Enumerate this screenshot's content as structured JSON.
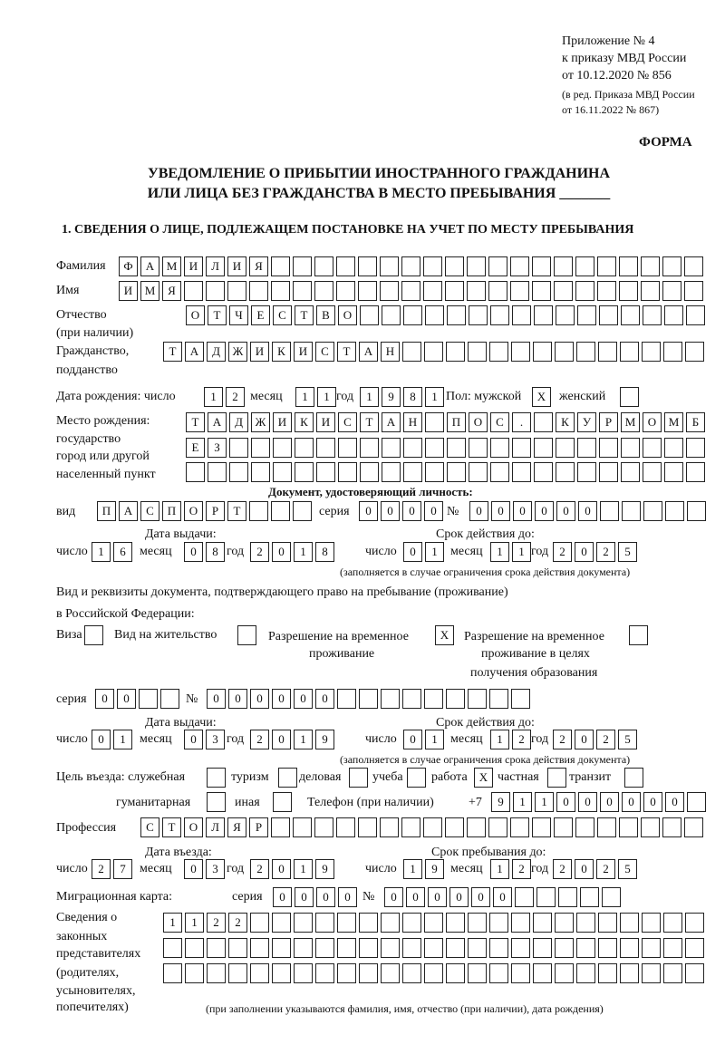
{
  "header": {
    "appendix": "Приложение № 4",
    "order": "к приказу МВД России",
    "order_date": "от 10.12.2020 № 856",
    "edition_1": "(в ред. Приказа МВД России",
    "edition_2": "от 16.11.2022 № 867)",
    "form_label": "ФОРМА",
    "title_1": "УВЕДОМЛЕНИЕ О ПРИБЫТИИ ИНОСТРАННОГО ГРАЖДАНИНА",
    "title_2": "ИЛИ ЛИЦА БЕЗ ГРАЖДАНСТВА В МЕСТО ПРЕБЫВАНИЯ _______",
    "section_1": "1. СВЕДЕНИЯ О ЛИЦЕ, ПОДЛЕЖАЩЕМ ПОСТАНОВКЕ НА УЧЕТ ПО МЕСТУ ПРЕБЫВАНИЯ"
  },
  "labels": {
    "surname": "Фамилия",
    "name": "Имя",
    "patronymic_1": "Отчество",
    "patronymic_2": "(при наличии)",
    "citizenship_1": "Гражданство,",
    "citizenship_2": "подданство",
    "birth_date": "Дата рождения:  число",
    "day": "число",
    "month": "месяц",
    "year": "год",
    "sex": "Пол: мужской",
    "female": "женский",
    "birthplace_1": "Место рождения:",
    "birthplace_2": "государство",
    "birthplace_3": "город или другой",
    "birthplace_4": "населенный пункт",
    "id_doc": "Документ, удостоверяющий личность:",
    "kind": "вид",
    "series": "серия",
    "number": "№",
    "issue_date": "Дата выдачи:",
    "valid_until": "Срок действия до:",
    "validity_note": "(заполняется в случае ограничения срока действия документа)",
    "right_doc_1": "Вид и реквизиты документа, подтверждающего право на пребывание (проживание)",
    "right_doc_2": "в Российской Федерации:",
    "visa": "Виза",
    "residence": "Вид на жительство",
    "trp_1": "Разрешение на временное",
    "trp_2": "проживание",
    "trp_edu_1": "Разрешение на временное",
    "trp_edu_2": "проживание в целях",
    "trp_edu_3": "получения образования",
    "purpose": "Цель въезда: служебная",
    "tourism": "туризм",
    "business": "деловая",
    "study": "учеба",
    "work": "работа",
    "private": "частная",
    "transit": "транзит",
    "humanitarian": "гуманитарная",
    "other": "иная",
    "phone": "Телефон (при наличии)",
    "phone_prefix": "+7",
    "profession": "Профессия",
    "entry_date": "Дата въезда:",
    "stay_until": "Срок пребывания до:",
    "migration_card": "Миграционная карта:",
    "reps_1": "Сведения о",
    "reps_2": "законных",
    "reps_3": "представителях",
    "reps_4": "(родителях,",
    "reps_5": "усыновителях,",
    "reps_6": "попечителях)",
    "reps_note": "(при заполнении указываются фамилия, имя, отчество (при наличии), дата рождения)"
  },
  "person": {
    "surname": "ФАМИЛИЯ",
    "name": "ИМЯ",
    "patronymic": "ОТЧЕСТВО",
    "citizenship": "ТАДЖИКИСТАН",
    "birth_day": "12",
    "birth_month": "11",
    "birth_year": "1981",
    "sex_male": "X",
    "sex_female": "",
    "birthplace_1": "ТАДЖИКИСТАН ПОС. КУРМОМБ",
    "birthplace_2": "ЕЗ",
    "birthplace_3": ""
  },
  "id_document": {
    "kind": "ПАСПОРТ",
    "series": "0000",
    "number": "000000",
    "issue_day": "16",
    "issue_month": "08",
    "issue_year": "2018",
    "valid_day": "01",
    "valid_month": "11",
    "valid_year": "2025"
  },
  "right_document": {
    "visa": "",
    "residence": "",
    "trp": "X",
    "trp_edu": "",
    "series": "00",
    "number": "000000",
    "issue_day": "01",
    "issue_month": "03",
    "issue_year": "2019",
    "valid_day": "01",
    "valid_month": "12",
    "valid_year": "2025"
  },
  "purpose": {
    "official": "",
    "tourism": "",
    "business": "",
    "study": "",
    "work": "X",
    "private": "",
    "transit": "",
    "humanitarian": "",
    "other": ""
  },
  "phone": "911000000",
  "profession": "СТОЛЯР",
  "entry": {
    "entry_day": "27",
    "entry_month": "03",
    "entry_year": "2019",
    "stay_day": "19",
    "stay_month": "12",
    "stay_year": "2025"
  },
  "migration_card": {
    "series": "0000",
    "number": "000000"
  },
  "representatives": {
    "line_1": "1122",
    "line_2": "",
    "line_3": ""
  }
}
